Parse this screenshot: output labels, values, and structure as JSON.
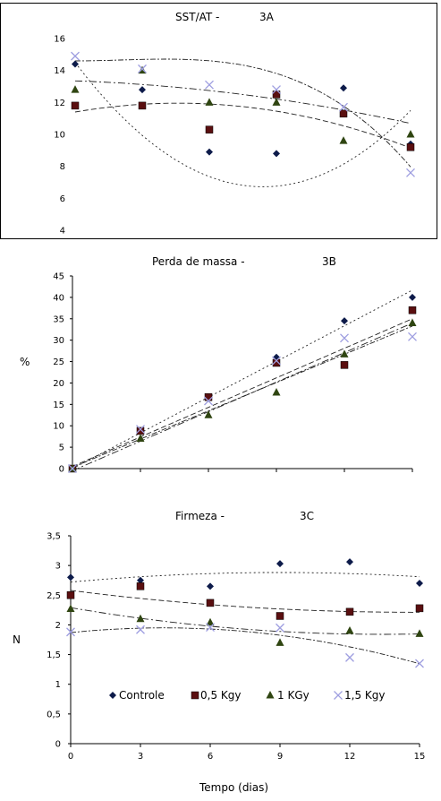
{
  "chart_data": [
    {
      "type": "scatter",
      "title": "SST/AT -",
      "panel": "3A",
      "xlabel": "",
      "ylabel": "",
      "ylim": [
        4,
        16
      ],
      "yticks": [
        "4",
        "6",
        "8",
        "10",
        "12",
        "14",
        "16"
      ],
      "xlim": [
        0,
        15
      ],
      "xticks": [],
      "framed": true,
      "trendlines": true,
      "series": [
        {
          "name": "Controle",
          "marker": "diamond",
          "x": [
            0,
            3,
            6,
            9,
            12,
            15
          ],
          "y": [
            14.4,
            12.8,
            8.9,
            8.8,
            12.9,
            9.4
          ],
          "trend": [
            14.5,
            -1.85,
            0.11,
            0
          ]
        },
        {
          "name": "0,5 Kgy",
          "marker": "square",
          "x": [
            0,
            3,
            6,
            9,
            12,
            15
          ],
          "y": [
            11.8,
            11.8,
            10.3,
            12.5,
            11.3,
            9.2
          ],
          "trend": [
            11.4,
            0.24,
            -0.026,
            0
          ]
        },
        {
          "name": "1 KGy",
          "marker": "triangle",
          "x": [
            0,
            3,
            6,
            9,
            12,
            15
          ],
          "y": [
            12.8,
            14.0,
            12.0,
            12.0,
            9.6,
            10.0
          ],
          "trend": [
            13.35,
            -0.05,
            -0.0085,
            0
          ]
        },
        {
          "name": "1,5 Kgy",
          "marker": "cross",
          "x": [
            0,
            3,
            6,
            9,
            12,
            15
          ],
          "y": [
            14.9,
            14.1,
            13.1,
            12.8,
            11.7,
            7.6
          ],
          "trend": [
            14.6,
            0.0,
            0.02,
            -0.0033
          ]
        }
      ]
    },
    {
      "type": "scatter",
      "title": "Perda de massa -",
      "panel": "3B",
      "xlabel": "",
      "ylabel": "%",
      "ylim": [
        0,
        45
      ],
      "yticks": [
        "0",
        "5",
        "10",
        "15",
        "20",
        "25",
        "30",
        "35",
        "40",
        "45"
      ],
      "xlim": [
        0,
        15
      ],
      "xticks": [],
      "framed": false,
      "trendlines": true,
      "series": [
        {
          "name": "Controle",
          "marker": "diamond",
          "x": [
            0,
            3,
            6,
            9,
            12,
            15
          ],
          "y": [
            0,
            8.8,
            16.5,
            26.0,
            34.5,
            40.0
          ],
          "trend": [
            0,
            2.78,
            0,
            0
          ]
        },
        {
          "name": "0,5 Kgy",
          "marker": "square",
          "x": [
            0,
            3,
            6,
            9,
            12,
            15
          ],
          "y": [
            0,
            8.8,
            16.7,
            24.7,
            24.2,
            37.0
          ],
          "trend": [
            0.5,
            2.3,
            0,
            0
          ]
        },
        {
          "name": "1 KGy",
          "marker": "triangle",
          "x": [
            0,
            3,
            6,
            9,
            12,
            15
          ],
          "y": [
            0,
            7.0,
            12.5,
            17.8,
            26.7,
            34.0
          ],
          "trend": [
            -0.5,
            2.3,
            0,
            0
          ]
        },
        {
          "name": "1,5 Kgy",
          "marker": "cross",
          "x": [
            0,
            3,
            6,
            9,
            12,
            15
          ],
          "y": [
            0,
            9.2,
            15.8,
            25.2,
            30.5,
            30.8
          ],
          "trend": [
            0.3,
            2.2,
            0,
            0
          ]
        }
      ]
    },
    {
      "type": "scatter",
      "title": "Firmeza -",
      "panel": "3C",
      "xlabel": "Tempo (dias)",
      "ylabel": "N",
      "ylim": [
        0,
        3.5
      ],
      "yticks": [
        "0",
        "0,5",
        "1",
        "1,5",
        "2",
        "2,5",
        "3",
        "3,5"
      ],
      "xlim": [
        0,
        15
      ],
      "xticks": [
        "0",
        "3",
        "6",
        "9",
        "12",
        "15"
      ],
      "framed": false,
      "trendlines": true,
      "series": [
        {
          "name": "Controle",
          "marker": "diamond",
          "x": [
            0,
            3,
            6,
            9,
            12,
            15
          ],
          "y": [
            2.8,
            2.75,
            2.65,
            3.03,
            3.06,
            2.7
          ],
          "trend": [
            2.72,
            0.036,
            -0.002,
            0
          ]
        },
        {
          "name": "0,5 Kgy",
          "marker": "square",
          "x": [
            0,
            3,
            6,
            9,
            12,
            15
          ],
          "y": [
            2.5,
            2.65,
            2.37,
            2.15,
            2.22,
            2.28
          ],
          "trend": [
            2.58,
            -0.05,
            0.0017,
            0
          ]
        },
        {
          "name": "1 KGy",
          "marker": "triangle",
          "x": [
            0,
            3,
            6,
            9,
            12,
            15
          ],
          "y": [
            2.27,
            2.1,
            2.04,
            1.7,
            1.9,
            1.85
          ],
          "trend": [
            2.29,
            -0.067,
            0.0025,
            0
          ]
        },
        {
          "name": "1,5 Kgy",
          "marker": "cross",
          "x": [
            0,
            3,
            6,
            9,
            12,
            15
          ],
          "y": [
            1.88,
            1.92,
            1.96,
            1.95,
            1.45,
            1.35
          ],
          "trend": [
            1.87,
            0.04,
            -0.005,
            0
          ]
        }
      ]
    }
  ],
  "legend": {
    "items": [
      {
        "label": "Controle",
        "marker": "diamond"
      },
      {
        "label": "0,5 Kgy",
        "marker": "square"
      },
      {
        "label": "1 KGy",
        "marker": "triangle"
      },
      {
        "label": "1,5 Kgy",
        "marker": "cross"
      }
    ]
  },
  "colors": {
    "diamond_fill": "#0d1b4a",
    "square_fill": "#5a0f10",
    "triangle_fill": "#2f4511",
    "cross_stroke": "#9e9ee0",
    "trend_line": "#222222",
    "axis": "#000000"
  }
}
